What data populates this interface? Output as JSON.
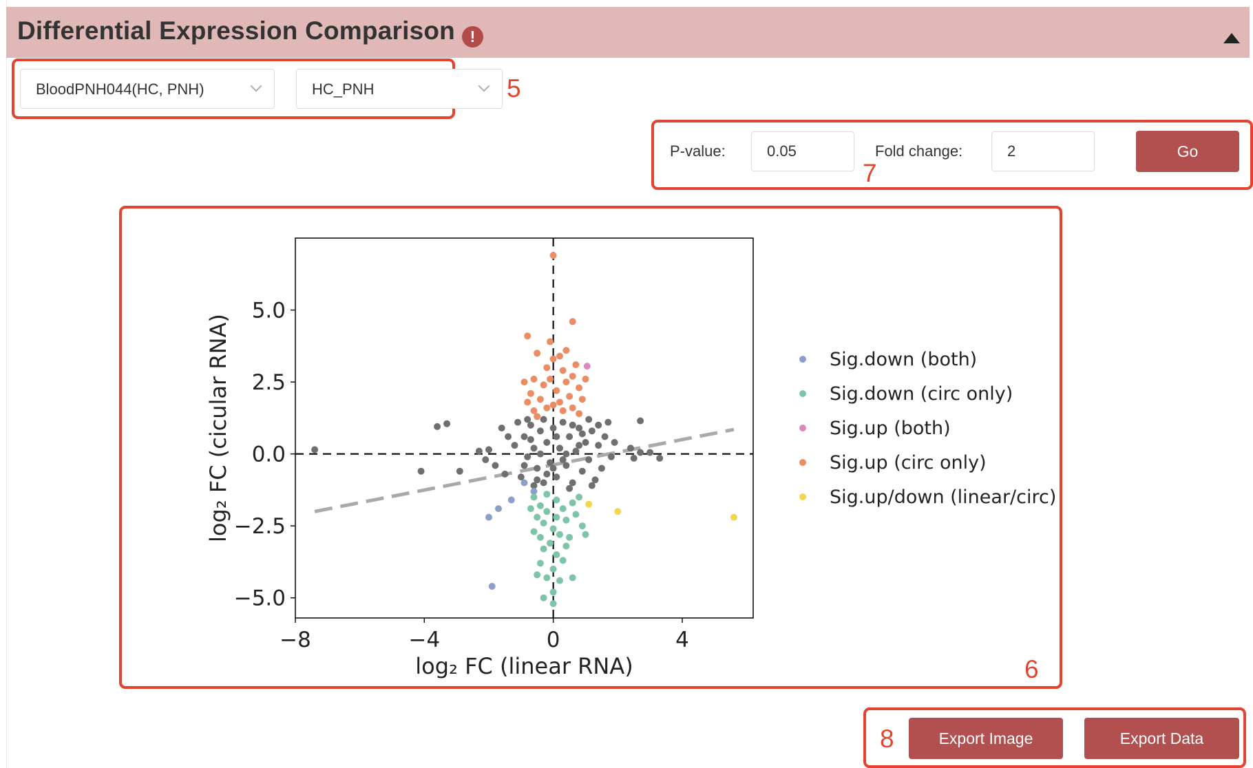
{
  "header": {
    "title": "Differential Expression Comparison",
    "alert_glyph": "!",
    "collapse_icon": "caret-up-icon"
  },
  "filters": {
    "dataset": "BloodPNH044(HC, PNH)",
    "comparison": "HC_PNH",
    "p_value_label": "P-value:",
    "p_value": "0.05",
    "fold_change_label": "Fold change:",
    "fold_change": "2",
    "go_label": "Go"
  },
  "actions": {
    "export_image": "Export Image",
    "export_data": "Export Data"
  },
  "callouts": {
    "c5": "5",
    "c6": "6",
    "c7": "7",
    "c8": "8"
  },
  "colors": {
    "brand": "#b24f4f",
    "header_bg": "#e0b8b8",
    "callout": "#e34430"
  },
  "chart_data": {
    "type": "scatter",
    "xlabel": "log₂ FC (linear RNA)",
    "ylabel": "log₂ FC (cicular RNA)",
    "xlim": [
      -8,
      6.2
    ],
    "ylim": [
      -5.7,
      7.5
    ],
    "xticks": [
      -8,
      -4,
      0,
      4
    ],
    "yticks": [
      -5.0,
      -2.5,
      0.0,
      2.5,
      5.0
    ],
    "xtick_labels": [
      "−8",
      "−4",
      "0",
      "4"
    ],
    "ytick_labels": [
      "−5.0",
      "−2.5",
      "0.0",
      "2.5",
      "5.0"
    ],
    "reference_lines": {
      "x": 0,
      "y": 0
    },
    "trend_line": {
      "x": [
        -7.4,
        5.6
      ],
      "y": [
        -2.0,
        0.85
      ]
    },
    "legend_position": "right",
    "series": [
      {
        "name": "Sig.down (both)",
        "color": "#8d9fc9",
        "points": [
          [
            -1.7,
            -1.9
          ],
          [
            -2.0,
            -2.2
          ],
          [
            -1.3,
            -1.6
          ],
          [
            -1.9,
            -4.6
          ],
          [
            -0.9,
            -1.0
          ],
          [
            -0.6,
            -1.3
          ]
        ]
      },
      {
        "name": "Sig.down (circ only)",
        "color": "#7ec4a7",
        "points": [
          [
            -0.6,
            -1.5
          ],
          [
            -0.4,
            -1.8
          ],
          [
            -0.2,
            -2.0
          ],
          [
            0.1,
            -1.6
          ],
          [
            0.3,
            -1.9
          ],
          [
            -0.3,
            -2.4
          ],
          [
            0.0,
            -2.6
          ],
          [
            0.4,
            -2.3
          ],
          [
            -0.5,
            -2.2
          ],
          [
            0.2,
            -2.8
          ],
          [
            -0.1,
            -3.1
          ],
          [
            0.5,
            -2.9
          ],
          [
            -0.3,
            -3.3
          ],
          [
            0.1,
            -3.5
          ],
          [
            -0.4,
            -3.8
          ],
          [
            0.3,
            -3.7
          ],
          [
            0.0,
            -4.0
          ],
          [
            -0.2,
            -4.3
          ],
          [
            0.2,
            -4.4
          ],
          [
            -0.5,
            -4.2
          ],
          [
            0.6,
            -4.3
          ],
          [
            0.0,
            -4.8
          ],
          [
            -0.3,
            -5.0
          ],
          [
            0.0,
            -5.2
          ],
          [
            1.0,
            -2.8
          ],
          [
            0.8,
            -1.5
          ],
          [
            0.7,
            -2.1
          ],
          [
            -0.6,
            -2.7
          ],
          [
            0.4,
            -3.2
          ],
          [
            -0.7,
            -1.9
          ],
          [
            0.9,
            -2.5
          ],
          [
            -0.4,
            -2.9
          ],
          [
            0.1,
            -2.2
          ],
          [
            0.6,
            -1.7
          ],
          [
            -0.2,
            -1.4
          ]
        ]
      },
      {
        "name": "Sig.up (both)",
        "color": "#d68ac0",
        "points": [
          [
            1.05,
            3.05
          ]
        ]
      },
      {
        "name": "Sig.up (circ only)",
        "color": "#ec8c65",
        "points": [
          [
            0.0,
            6.9
          ],
          [
            0.6,
            4.6
          ],
          [
            -0.8,
            4.1
          ],
          [
            -0.1,
            3.9
          ],
          [
            -0.5,
            3.5
          ],
          [
            0.4,
            3.6
          ],
          [
            0.0,
            3.3
          ],
          [
            -0.2,
            3.0
          ],
          [
            0.3,
            2.9
          ],
          [
            -0.6,
            2.6
          ],
          [
            0.6,
            2.7
          ],
          [
            -0.3,
            2.4
          ],
          [
            0.1,
            2.2
          ],
          [
            0.8,
            2.3
          ],
          [
            -0.7,
            2.1
          ],
          [
            0.5,
            2.0
          ],
          [
            -0.4,
            1.9
          ],
          [
            0.2,
            1.8
          ],
          [
            0.9,
            1.9
          ],
          [
            -0.2,
            1.6
          ],
          [
            0.6,
            1.6
          ],
          [
            -0.6,
            1.5
          ],
          [
            0.3,
            1.5
          ],
          [
            0.0,
            1.7
          ],
          [
            -0.8,
            1.8
          ],
          [
            1.0,
            2.6
          ],
          [
            0.7,
            3.1
          ],
          [
            -0.9,
            2.5
          ],
          [
            0.4,
            2.5
          ],
          [
            -0.1,
            2.6
          ],
          [
            0.2,
            3.4
          ],
          [
            0.8,
            1.4
          ],
          [
            -0.5,
            1.3
          ]
        ]
      },
      {
        "name": "Sig.up/down (linear/circ)",
        "color": "#f2d64b",
        "points": [
          [
            1.1,
            -1.75
          ],
          [
            2.0,
            -2.0
          ],
          [
            5.6,
            -2.2
          ]
        ]
      },
      {
        "color": "#6f6f6f",
        "points": [
          [
            -7.4,
            0.15
          ],
          [
            -3.6,
            0.95
          ],
          [
            -3.3,
            1.05
          ],
          [
            -4.1,
            -0.6
          ],
          [
            -2.9,
            -0.6
          ],
          [
            -2.3,
            0.1
          ],
          [
            -2.1,
            -0.2
          ],
          [
            -2.0,
            0.15
          ],
          [
            -1.8,
            -0.4
          ],
          [
            -1.5,
            -0.7
          ],
          [
            -1.2,
            0.3
          ],
          [
            -1.0,
            -0.8
          ],
          [
            -0.9,
            0.6
          ],
          [
            -0.8,
            -0.1
          ],
          [
            -0.7,
            1.0
          ],
          [
            -0.6,
            0.2
          ],
          [
            -0.5,
            -0.5
          ],
          [
            -0.4,
            0.8
          ],
          [
            -0.3,
            -1.0
          ],
          [
            -0.2,
            0.4
          ],
          [
            -0.1,
            -0.3
          ],
          [
            0.0,
            0.9
          ],
          [
            0.1,
            -0.8
          ],
          [
            0.2,
            0.2
          ],
          [
            0.3,
            1.1
          ],
          [
            0.4,
            -0.4
          ],
          [
            0.5,
            0.6
          ],
          [
            0.6,
            -1.0
          ],
          [
            0.7,
            0.1
          ],
          [
            0.8,
            0.9
          ],
          [
            0.9,
            -0.6
          ],
          [
            1.0,
            0.4
          ],
          [
            1.1,
            -0.2
          ],
          [
            1.2,
            0.8
          ],
          [
            1.3,
            -0.9
          ],
          [
            1.4,
            0.3
          ],
          [
            1.5,
            -0.5
          ],
          [
            1.6,
            0.6
          ],
          [
            1.7,
            1.1
          ],
          [
            1.8,
            -0.1
          ],
          [
            1.2,
            -1.1
          ],
          [
            -1.1,
            1.1
          ],
          [
            -0.6,
            -1.1
          ],
          [
            0.5,
            -1.2
          ],
          [
            -0.3,
            1.2
          ],
          [
            2.7,
            1.15
          ],
          [
            2.4,
            0.2
          ],
          [
            2.7,
            0.05
          ],
          [
            2.5,
            -0.15
          ],
          [
            3.3,
            -0.15
          ],
          [
            3.0,
            0.05
          ],
          [
            -0.9,
            -0.4
          ],
          [
            -0.4,
            0.0
          ],
          [
            0.3,
            -0.2
          ],
          [
            0.8,
            0.3
          ],
          [
            -0.2,
            -0.7
          ],
          [
            0.1,
            0.6
          ],
          [
            0.6,
            1.0
          ],
          [
            -0.7,
            0.5
          ],
          [
            1.4,
            1.0
          ],
          [
            -1.4,
            0.6
          ],
          [
            1.9,
            0.4
          ],
          [
            -1.6,
            0.9
          ],
          [
            0.0,
            -0.5
          ],
          [
            0.4,
            0.0
          ],
          [
            -0.5,
            -0.9
          ],
          [
            0.9,
            0.7
          ],
          [
            1.1,
            1.2
          ],
          [
            -0.8,
            1.2
          ]
        ]
      }
    ]
  }
}
